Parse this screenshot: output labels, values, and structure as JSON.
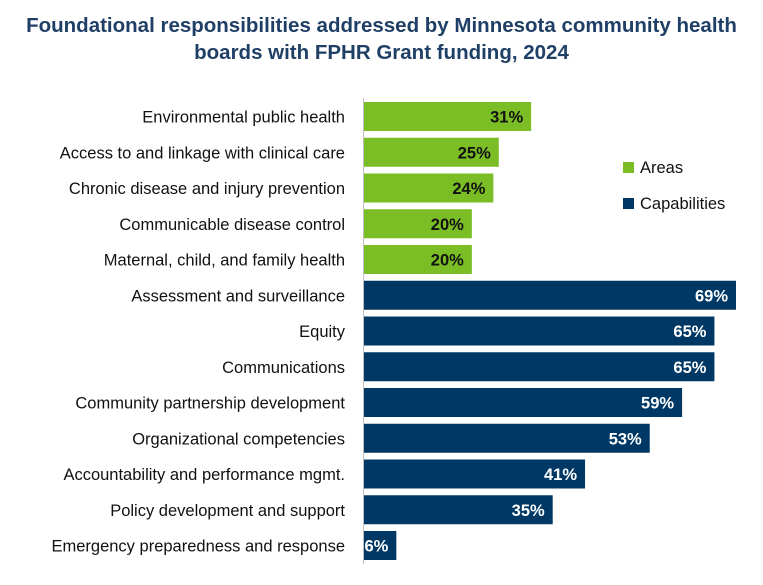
{
  "chart_data": {
    "type": "bar",
    "orientation": "horizontal",
    "title": "Foundational responsibilities addressed by Minnesota community health boards with FPHR Grant funding, 2024",
    "categories": [
      "Environmental public health",
      "Access to and linkage with clinical care",
      "Chronic disease and injury prevention",
      "Communicable disease control",
      "Maternal, child, and family health",
      "Assessment and surveillance",
      "Equity",
      "Communications",
      "Community partnership development",
      "Organizational competencies",
      "Accountability and performance mgmt.",
      "Policy development and support",
      "Emergency preparedness and response"
    ],
    "values": [
      31,
      25,
      24,
      20,
      20,
      69,
      65,
      65,
      59,
      53,
      41,
      35,
      6
    ],
    "groups": [
      "Areas",
      "Areas",
      "Areas",
      "Areas",
      "Areas",
      "Capabilities",
      "Capabilities",
      "Capabilities",
      "Capabilities",
      "Capabilities",
      "Capabilities",
      "Capabilities",
      "Capabilities"
    ],
    "value_suffix": "%",
    "legend": [
      {
        "name": "Areas",
        "color": "#7ABD25"
      },
      {
        "name": "Capabilities",
        "color": "#003865"
      }
    ],
    "legend_placement": "right",
    "xlim": [
      0,
      69
    ],
    "grid": false,
    "data_label_colors": {
      "Areas": "#111111",
      "Capabilities": "#ffffff"
    }
  }
}
